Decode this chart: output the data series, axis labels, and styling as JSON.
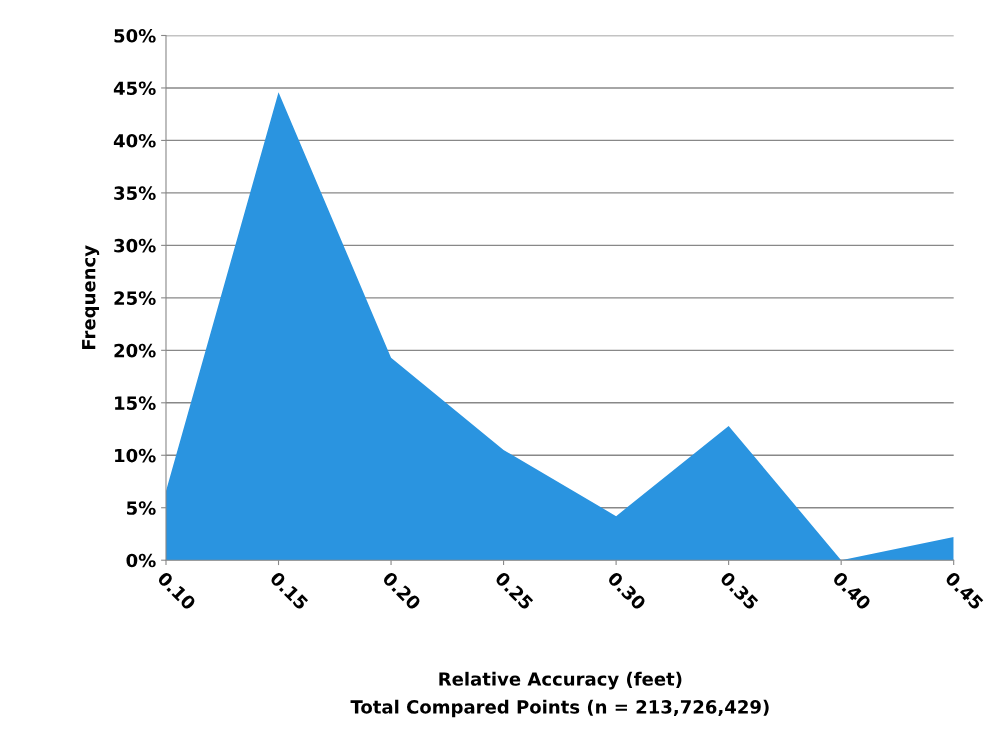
{
  "chart_data": {
    "type": "area",
    "categories": [
      "0.10",
      "0.15",
      "0.20",
      "0.25",
      "0.30",
      "0.35",
      "0.40",
      "0.45"
    ],
    "values": [
      6.6,
      44.6,
      19.3,
      10.5,
      4.2,
      12.8,
      0,
      2.2
    ],
    "color": "#2a94e0",
    "xlabel": "Relative Accuracy (feet)",
    "ylabel": "Frequency",
    "annotations": [
      "Total Compared Points (n = 213,726,429)"
    ],
    "ylim": [
      0,
      50
    ],
    "yticks": [
      {
        "value": 0,
        "label": "0%"
      },
      {
        "value": 5,
        "label": "5%"
      },
      {
        "value": 10,
        "label": "10%"
      },
      {
        "value": 15,
        "label": "15%"
      },
      {
        "value": 20,
        "label": "20%"
      },
      {
        "value": 25,
        "label": "25%"
      },
      {
        "value": 30,
        "label": "30%"
      },
      {
        "value": 35,
        "label": "35%"
      },
      {
        "value": 40,
        "label": "40%"
      },
      {
        "value": 45,
        "label": "45%"
      },
      {
        "value": 50,
        "label": "50%"
      }
    ],
    "grid": "y"
  }
}
